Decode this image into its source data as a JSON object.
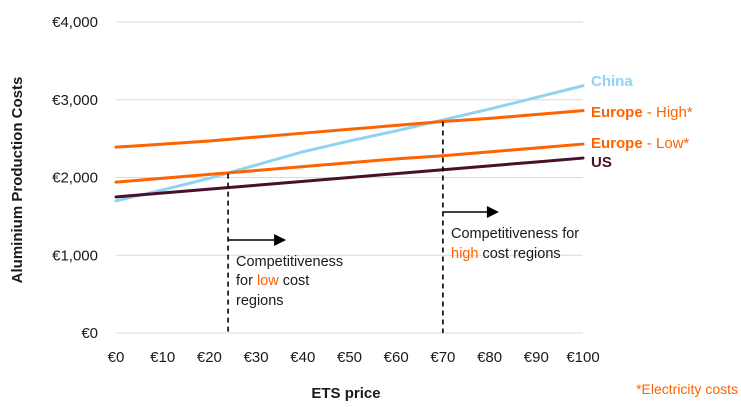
{
  "chart_data": {
    "type": "line",
    "title": "",
    "xlabel": "ETS price",
    "ylabel": "Aluminium Production Costs",
    "x": [
      0,
      10,
      20,
      30,
      40,
      50,
      60,
      70,
      80,
      90,
      100
    ],
    "x_tick_labels": [
      "€0",
      "€10",
      "€20",
      "€30",
      "€40",
      "€50",
      "€60",
      "€70",
      "€80",
      "€90",
      "€100"
    ],
    "y_ticks": [
      0,
      1000,
      2000,
      3000,
      4000
    ],
    "y_tick_labels": [
      "€0",
      "€1,000",
      "€2,000",
      "€3,000",
      "€4,000"
    ],
    "xlim": [
      0,
      100
    ],
    "ylim": [
      0,
      4000
    ],
    "grid": "horizontal",
    "legend": "labels at line ends (right)",
    "series": [
      {
        "name": "China",
        "name_suffix": "",
        "color": "#8fd3f3",
        "label_color": "#8fd3f3",
        "values": [
          1700,
          1840,
          1990,
          2160,
          2330,
          2470,
          2600,
          2740,
          2880,
          3030,
          3180
        ]
      },
      {
        "name": "Europe",
        "name_suffix": " - High*",
        "color": "#ff6200",
        "label_color": "#ff6200",
        "values": [
          2390,
          2430,
          2470,
          2520,
          2570,
          2620,
          2670,
          2720,
          2760,
          2810,
          2860
        ]
      },
      {
        "name": "Europe",
        "name_suffix": " - Low*",
        "color": "#ff6200",
        "label_color": "#ff6200",
        "values": [
          1940,
          1990,
          2040,
          2090,
          2140,
          2190,
          2240,
          2280,
          2330,
          2380,
          2430
        ]
      },
      {
        "name": "US",
        "name_suffix": "",
        "color": "#4a0f2c",
        "label_color": "#4a0f2c",
        "values": [
          1750,
          1800,
          1850,
          1900,
          1950,
          2000,
          2050,
          2100,
          2150,
          2200,
          2250
        ]
      }
    ],
    "annotations": [
      {
        "x": 24,
        "line1": "Competitiveness",
        "line2_prefix": "for ",
        "line2_highlight": "low",
        "line2_suffix": " cost",
        "line3": "regions"
      },
      {
        "x": 70,
        "line1": "Competitiveness for",
        "line2_prefix": "",
        "line2_highlight": "high",
        "line2_suffix": " cost regions",
        "line3": ""
      }
    ],
    "footnote": "*Electricity costs"
  },
  "colors": {
    "orange": "#ff6200",
    "text": "#1a1a1a",
    "grid": "#d9d9d9"
  }
}
